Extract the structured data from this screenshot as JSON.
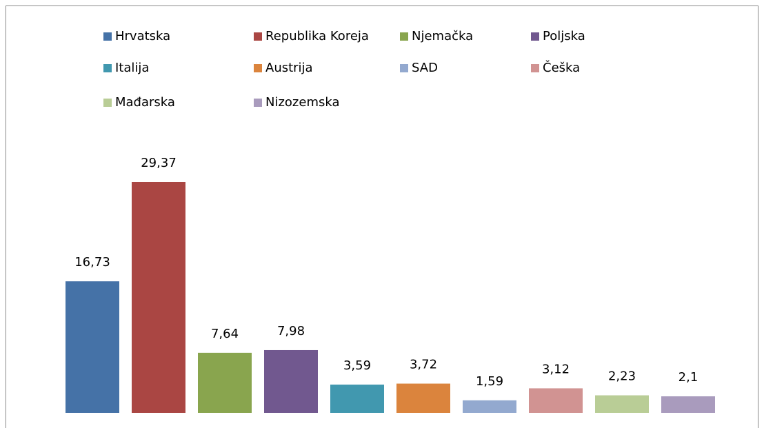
{
  "chart_data": {
    "type": "bar",
    "series": [
      {
        "name": "Hrvatska",
        "color": "#4572a7",
        "values": [
          16.73
        ],
        "value_labels": [
          "16,73"
        ]
      },
      {
        "name": "Republika Koreja",
        "color": "#aa4643",
        "values": [
          29.37
        ],
        "value_labels": [
          "29,37"
        ]
      },
      {
        "name": "Njemačka",
        "color": "#89a54e",
        "values": [
          7.64
        ],
        "value_labels": [
          "7,64"
        ]
      },
      {
        "name": "Poljska",
        "color": "#71588f",
        "values": [
          7.98
        ],
        "value_labels": [
          "7,98"
        ]
      },
      {
        "name": "Italija",
        "color": "#4198af",
        "values": [
          3.59
        ],
        "value_labels": [
          "3,59"
        ]
      },
      {
        "name": "Austrija",
        "color": "#db843d",
        "values": [
          3.72
        ],
        "value_labels": [
          "3,72"
        ]
      },
      {
        "name": "SAD",
        "color": "#93a9cf",
        "values": [
          1.59
        ],
        "value_labels": [
          "1,59"
        ]
      },
      {
        "name": "Češka",
        "color": "#d19392",
        "values": [
          3.12
        ],
        "value_labels": [
          "3,12"
        ]
      },
      {
        "name": "Mađarska",
        "color": "#b9cd96",
        "values": [
          2.23
        ],
        "value_labels": [
          "2,23"
        ]
      },
      {
        "name": "Nizozemska",
        "color": "#a99bbd",
        "values": [
          2.1
        ],
        "value_labels": [
          "2,1"
        ]
      }
    ]
  }
}
